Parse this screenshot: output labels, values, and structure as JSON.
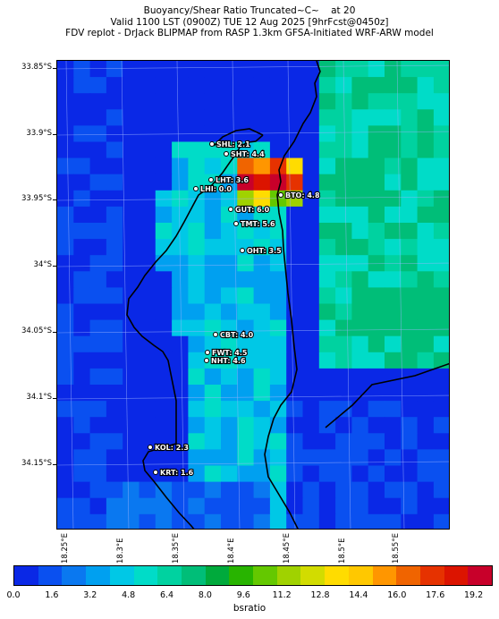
{
  "title": {
    "line1": "Buoyancy/Shear Ratio Truncated~C~    at 20",
    "line2": "Valid 1100 LST (0900Z) TUE 12 Aug 2025 [9hrFcst@0450z]",
    "line3": "FDV replot - DrJack BLIPMAP from RASP 1.3km GFSA-Initiated WRF-ARW model"
  },
  "axes": {
    "lat_ticks": [
      "33.85°S",
      "33.9°S",
      "33.95°S",
      "34°S",
      "34.05°S",
      "34.1°S",
      "34.15°S"
    ],
    "lon_ticks": [
      "18.25°E",
      "18.3°E",
      "18.35°E",
      "18.4°E",
      "18.45°E",
      "18.5°E",
      "18.55°E"
    ]
  },
  "colorbar": {
    "label": "bsratio",
    "ticks": [
      "0.0",
      "1.6",
      "3.2",
      "4.8",
      "6.4",
      "8.0",
      "9.6",
      "11.2",
      "12.8",
      "14.4",
      "16.0",
      "17.6",
      "19.2"
    ],
    "colors": [
      "#0a28e6",
      "#0a50f0",
      "#0a78f0",
      "#00a0f0",
      "#00c8e6",
      "#00dcc8",
      "#00d2a0",
      "#00be78",
      "#00aa3c",
      "#28b400",
      "#64c800",
      "#a0d200",
      "#d2dc00",
      "#ffdc00",
      "#ffc800",
      "#ff9600",
      "#f06400",
      "#e63200",
      "#dc1400",
      "#c8002a"
    ]
  },
  "map": {
    "stations": [
      {
        "label": "SHL: 2.1"
      },
      {
        "label": "SHT: 4.4"
      },
      {
        "label": "LHT: 3.6"
      },
      {
        "label": "LHI: 0.0"
      },
      {
        "label": "BTO: 4.8"
      },
      {
        "label": "GUT: 6.0"
      },
      {
        "label": "TMT: 5.6"
      },
      {
        "label": "OHT: 3.5"
      },
      {
        "label": "CBT: 4.0"
      },
      {
        "label": "FWT: 4.5"
      },
      {
        "label": "NHT: 4.6"
      },
      {
        "label": "KOL: 2.3"
      },
      {
        "label": "KRT: 1.6"
      }
    ]
  }
}
